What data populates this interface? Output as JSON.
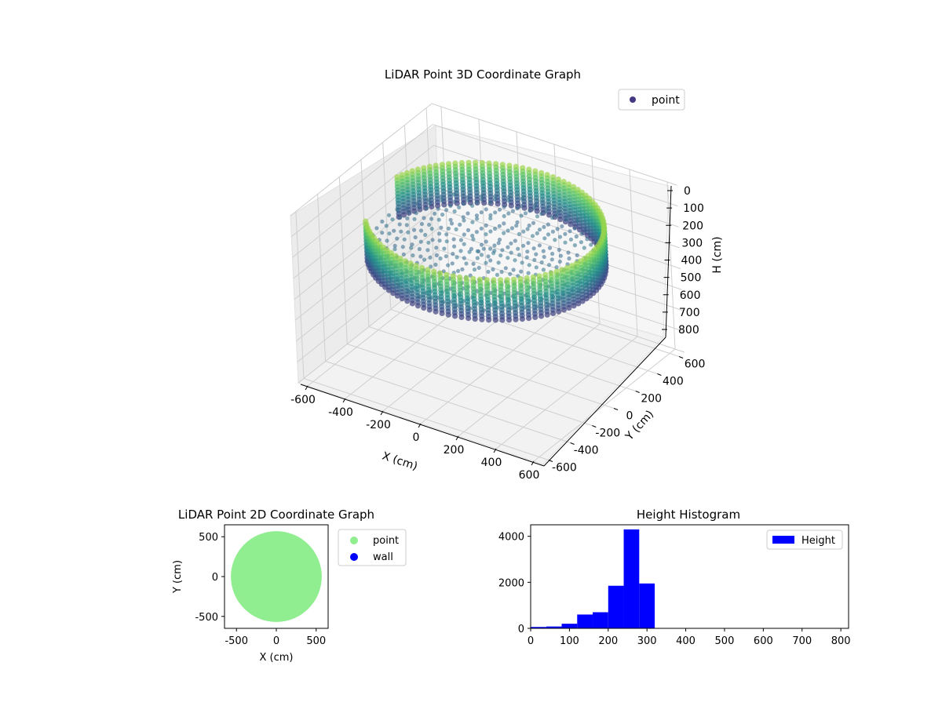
{
  "chart_data": [
    {
      "type": "scatter",
      "projection": "3d",
      "title": "LiDAR Point 3D Coordinate Graph",
      "xlabel": "X (cm)",
      "ylabel": "Y (cm)",
      "zlabel": "H (cm)",
      "xlim": [
        -650,
        650
      ],
      "ylim": [
        -650,
        650
      ],
      "zlim": [
        0,
        800
      ],
      "z_inverted": true,
      "x_ticks": [
        "-600",
        "-400",
        "-200",
        "0",
        "200",
        "400",
        "600"
      ],
      "y_ticks": [
        "600",
        "400",
        "200",
        "0",
        "-200",
        "-400",
        "-600"
      ],
      "z_ticks": [
        "0",
        "100",
        "200",
        "300",
        "400",
        "500",
        "600",
        "700",
        "800"
      ],
      "grid": true,
      "colormap": "viridis",
      "legend": {
        "position": "top-right",
        "entries": [
          {
            "label": "point",
            "color": "#453781"
          }
        ]
      },
      "series": [
        {
          "name": "point",
          "description_shape": "ring",
          "ring_radius": 550,
          "wall_height_range": [
            100,
            300
          ],
          "floor_height": 250
        }
      ]
    },
    {
      "type": "scatter",
      "title": "LiDAR Point 2D Coordinate Graph",
      "xlabel": "X (cm)",
      "ylabel": "Y (cm)",
      "xlim": [
        -650,
        650
      ],
      "ylim": [
        -650,
        650
      ],
      "x_ticks": [
        "-500",
        "0",
        "500"
      ],
      "y_ticks": [
        "500",
        "0",
        "-500"
      ],
      "legend": {
        "position": "outside-right",
        "entries": [
          {
            "label": "point",
            "color": "#90ee90"
          },
          {
            "label": "wall",
            "color": "#0000ff"
          }
        ]
      },
      "series": [
        {
          "name": "point",
          "shape": "disc",
          "center": [
            0,
            0
          ],
          "radius": 570
        }
      ]
    },
    {
      "type": "bar",
      "subtype": "histogram",
      "title": "Height Histogram",
      "xlim": [
        0,
        820
      ],
      "ylim": [
        0,
        4500
      ],
      "x_ticks": [
        "0",
        "100",
        "200",
        "300",
        "400",
        "500",
        "600",
        "700",
        "800"
      ],
      "y_ticks": [
        "0",
        "2000",
        "4000"
      ],
      "color": "#0000ff",
      "legend": {
        "position": "top-right",
        "entries": [
          {
            "label": "Height",
            "color": "#0000ff"
          }
        ]
      },
      "bin_width": 40,
      "bins": [
        {
          "x0": 0,
          "count": 60
        },
        {
          "x0": 40,
          "count": 80
        },
        {
          "x0": 80,
          "count": 200
        },
        {
          "x0": 120,
          "count": 600
        },
        {
          "x0": 160,
          "count": 700
        },
        {
          "x0": 200,
          "count": 1850
        },
        {
          "x0": 240,
          "count": 4300
        },
        {
          "x0": 280,
          "count": 1950
        },
        {
          "x0": 320,
          "count": 0
        },
        {
          "x0": 360,
          "count": 0
        },
        {
          "x0": 400,
          "count": 0
        },
        {
          "x0": 440,
          "count": 0
        },
        {
          "x0": 480,
          "count": 0
        },
        {
          "x0": 520,
          "count": 0
        },
        {
          "x0": 560,
          "count": 0
        },
        {
          "x0": 600,
          "count": 0
        },
        {
          "x0": 640,
          "count": 0
        },
        {
          "x0": 680,
          "count": 0
        },
        {
          "x0": 720,
          "count": 0
        },
        {
          "x0": 760,
          "count": 0
        }
      ]
    }
  ]
}
